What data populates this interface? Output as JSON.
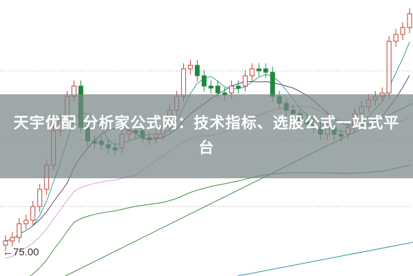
{
  "banner": {
    "title": "天宇优配 分析家公式网：技术指标、选股公式一站式平台"
  },
  "chart_data": {
    "type": "candlestick",
    "title": "",
    "annotations": [
      {
        "text": "← 75.00",
        "label": "75.00"
      }
    ],
    "grid": "horizontal dotted",
    "moving_averages": 6,
    "colors": {
      "up": "#c0392b",
      "down": "#1e8a3a",
      "ma_short": "#2aa198",
      "ma_mid": "#5b3a7a",
      "ma_long": "#d79bd9",
      "ma_xlong": "#3c8a3c",
      "ma_xxlong": "#2a8fa0"
    }
  }
}
